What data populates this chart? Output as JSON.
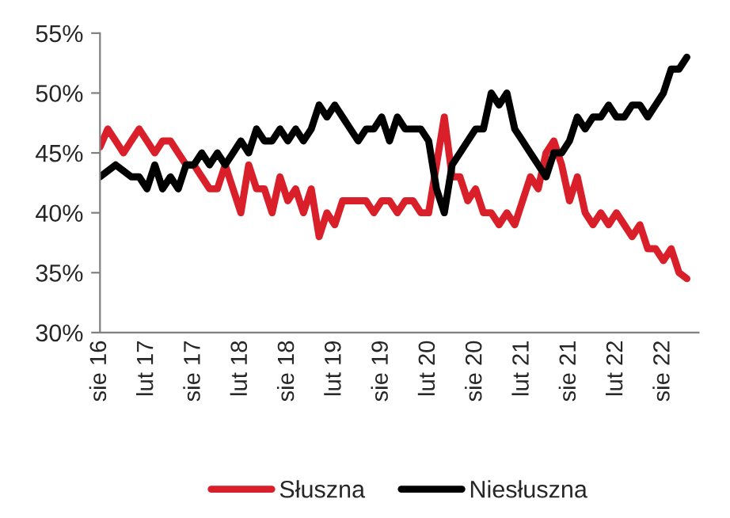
{
  "chart_data": {
    "type": "line",
    "categories": [
      "sie 16",
      null,
      null,
      null,
      null,
      null,
      "lut 17",
      null,
      null,
      null,
      null,
      null,
      "sie 17",
      null,
      null,
      null,
      null,
      null,
      "lut 18",
      null,
      null,
      null,
      null,
      null,
      "sie 18",
      null,
      null,
      null,
      null,
      null,
      "lut 19",
      null,
      null,
      null,
      null,
      null,
      "sie 19",
      null,
      null,
      null,
      null,
      null,
      "lut 20",
      null,
      null,
      null,
      null,
      null,
      "sie 20",
      null,
      null,
      null,
      null,
      null,
      "lut 21",
      null,
      null,
      null,
      null,
      null,
      "sie 21",
      null,
      null,
      null,
      null,
      null,
      "lut 22",
      null,
      null,
      null,
      null,
      null,
      "sie 22",
      null,
      null,
      null
    ],
    "series": [
      {
        "name": "Słuszna",
        "color": "#d9202a",
        "values": [
          45.5,
          47,
          46,
          45,
          46,
          47,
          46,
          45,
          46,
          46,
          45,
          44,
          44,
          43,
          42,
          42,
          44,
          42,
          40,
          44,
          42,
          42,
          40,
          43,
          41,
          42,
          40,
          42,
          38,
          40,
          39,
          41,
          41,
          41,
          41,
          40,
          41,
          41,
          40,
          41,
          41,
          40,
          40,
          44,
          48,
          43,
          43,
          41,
          42,
          40,
          40,
          39,
          40,
          39,
          41,
          43,
          42,
          45,
          46,
          44,
          41,
          43,
          40,
          39,
          40,
          39,
          40,
          39,
          38,
          39,
          37,
          37,
          36,
          37,
          35,
          34.5
        ]
      },
      {
        "name": "Niesłuszna",
        "color": "#000000",
        "values": [
          43,
          43.5,
          44,
          43.5,
          43,
          43,
          42,
          44,
          42,
          43,
          42,
          44,
          44,
          45,
          44,
          45,
          44,
          45,
          46,
          45,
          47,
          46,
          46,
          47,
          46,
          47,
          46,
          47,
          49,
          48,
          49,
          48,
          47,
          46,
          47,
          47,
          48,
          46,
          48,
          47,
          47,
          47,
          46,
          42,
          40,
          44,
          45,
          46,
          47,
          47,
          50,
          49,
          50,
          47,
          46,
          45,
          44,
          43,
          45,
          45,
          46,
          48,
          47,
          48,
          48,
          49,
          48,
          48,
          49,
          49,
          48,
          49,
          50,
          52,
          52,
          53
        ]
      }
    ],
    "ylim": [
      30,
      55
    ],
    "yticks": [
      {
        "value": 30,
        "label": "30%"
      },
      {
        "value": 35,
        "label": "35%"
      },
      {
        "value": 40,
        "label": "40%"
      },
      {
        "value": 45,
        "label": "45%"
      },
      {
        "value": 50,
        "label": "50%"
      },
      {
        "value": 55,
        "label": "55%"
      }
    ],
    "grid": false,
    "legend": "bottom",
    "line_style": "solid"
  }
}
